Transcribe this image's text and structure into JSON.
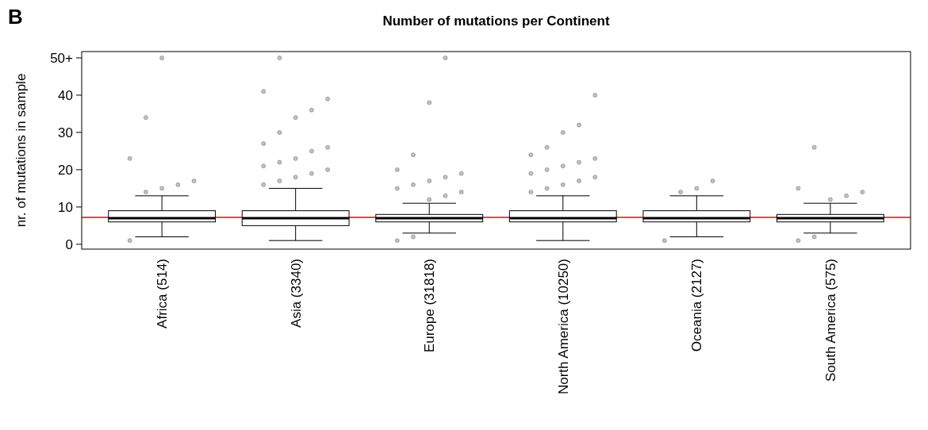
{
  "chart_data": {
    "type": "box",
    "title": "Number of mutations per Continent",
    "ylabel": "nr. of mutations in sample",
    "annotations": [
      "B"
    ],
    "categories": [
      "Africa (514)",
      "Asia (3340)",
      "Europe (31818)",
      "North America (10250)",
      "Oceania (2127)",
      "South America (575)"
    ],
    "boxes": [
      {
        "low": 2,
        "q1": 6,
        "median": 7,
        "q3": 9,
        "high": 13,
        "outliers": [
          1,
          14,
          15,
          16,
          17,
          23,
          34,
          50
        ]
      },
      {
        "low": 1,
        "q1": 5,
        "median": 7,
        "q3": 9,
        "high": 15,
        "outliers": [
          16,
          17,
          18,
          19,
          20,
          21,
          22,
          23,
          25,
          26,
          27,
          30,
          34,
          36,
          39,
          41,
          50
        ]
      },
      {
        "low": 3,
        "q1": 6,
        "median": 7,
        "q3": 8,
        "high": 11,
        "outliers": [
          1,
          2,
          12,
          13,
          14,
          15,
          16,
          17,
          18,
          19,
          20,
          24,
          38,
          50
        ]
      },
      {
        "low": 1,
        "q1": 6,
        "median": 7,
        "q3": 9,
        "high": 13,
        "outliers": [
          14,
          15,
          16,
          17,
          18,
          19,
          20,
          21,
          22,
          23,
          24,
          26,
          30,
          32,
          40
        ]
      },
      {
        "low": 2,
        "q1": 6,
        "median": 7,
        "q3": 9,
        "high": 13,
        "outliers": [
          1,
          14,
          15,
          17
        ]
      },
      {
        "low": 3,
        "q1": 6,
        "median": 7,
        "q3": 8,
        "high": 11,
        "outliers": [
          1,
          2,
          12,
          13,
          14,
          15,
          26
        ]
      }
    ],
    "ylim": [
      -1.3,
      51.7
    ],
    "yticks": [
      0,
      10,
      20,
      30,
      40,
      {
        "value": 50,
        "label": "50+"
      }
    ],
    "ref_lines": [
      {
        "axis": "y",
        "value": 7.2,
        "color": "#ff0000"
      }
    ]
  }
}
